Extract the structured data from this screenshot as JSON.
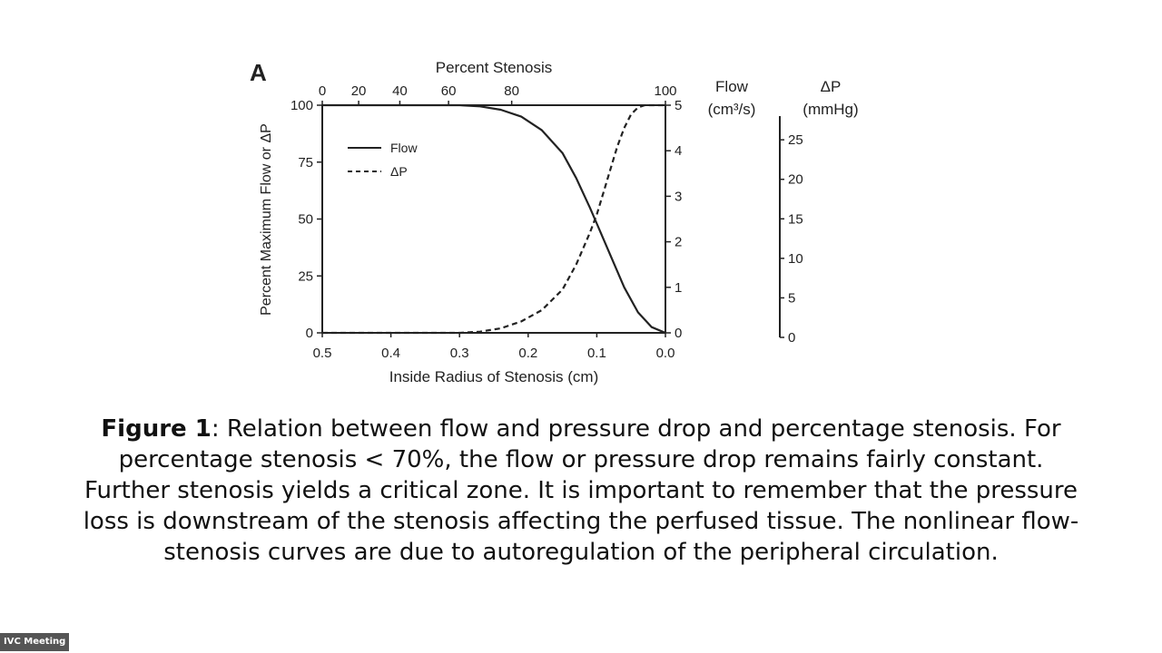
{
  "panel_label": "A",
  "caption": {
    "label": "Figure 1",
    "text": ": Relation between flow and pressure drop and percentage stenosis. For percentage stenosis < 70%, the flow or pressure drop remains fairly constant. Further stenosis yields a critical zone. It is important to remember that the pressure loss is downstream of the stenosis affecting the perfused tissue. The nonlinear flow-stenosis curves are due to autoregulation of the peripheral circulation."
  },
  "meeting_badge": "IVC Meeting",
  "chart_data": {
    "type": "line",
    "xlabel": "Inside Radius of Stenosis (cm)",
    "xlim": [
      0.5,
      0.0
    ],
    "x_ticks": [
      "0.5",
      "0.4",
      "0.3",
      "0.2",
      "0.1",
      "0.0"
    ],
    "ylabel": "Percent  Maximum Flow or ΔP",
    "ylim": [
      0,
      100
    ],
    "y_ticks": [
      "0",
      "25",
      "50",
      "75",
      "100"
    ],
    "top_axis": {
      "label": "Percent Stenosis",
      "ticks": [
        {
          "radius": 0.5,
          "label": "0"
        },
        {
          "radius": 0.447,
          "label": "20"
        },
        {
          "radius": 0.387,
          "label": "40"
        },
        {
          "radius": 0.316,
          "label": "60"
        },
        {
          "radius": 0.224,
          "label": "80"
        },
        {
          "radius": 0.0,
          "label": "100"
        }
      ]
    },
    "flow_axis": {
      "label_line1": "Flow",
      "label_line2": "(cm³/s)",
      "range": [
        0,
        5
      ],
      "ticks": [
        "0",
        "1",
        "2",
        "3",
        "4",
        "5"
      ]
    },
    "dp_axis": {
      "label_line1": "ΔP",
      "label_line2": "(mmHg)",
      "range": [
        0,
        28
      ],
      "ticks": [
        "0",
        "5",
        "10",
        "15",
        "20",
        "25"
      ]
    },
    "legend_position": "top-left",
    "series": [
      {
        "name": "Flow",
        "style": "solid",
        "color": "#222222",
        "x": [
          0.5,
          0.4,
          0.3,
          0.27,
          0.24,
          0.21,
          0.18,
          0.15,
          0.13,
          0.11,
          0.1,
          0.08,
          0.06,
          0.04,
          0.02,
          0.0
        ],
        "y": [
          100,
          100,
          100,
          99.5,
          98,
          95,
          89,
          79,
          68,
          55,
          48,
          34,
          20,
          9,
          2.5,
          0
        ]
      },
      {
        "name": "ΔP",
        "style": "dashed",
        "color": "#222222",
        "x": [
          0.5,
          0.4,
          0.3,
          0.27,
          0.24,
          0.21,
          0.18,
          0.15,
          0.13,
          0.11,
          0.1,
          0.09,
          0.08,
          0.07,
          0.06,
          0.05,
          0.04,
          0.03,
          0.0
        ],
        "y": [
          0,
          0,
          0,
          0.5,
          2,
          5,
          10,
          19,
          30,
          44,
          52,
          62,
          72,
          82,
          90,
          96,
          99,
          100,
          100
        ]
      }
    ]
  }
}
